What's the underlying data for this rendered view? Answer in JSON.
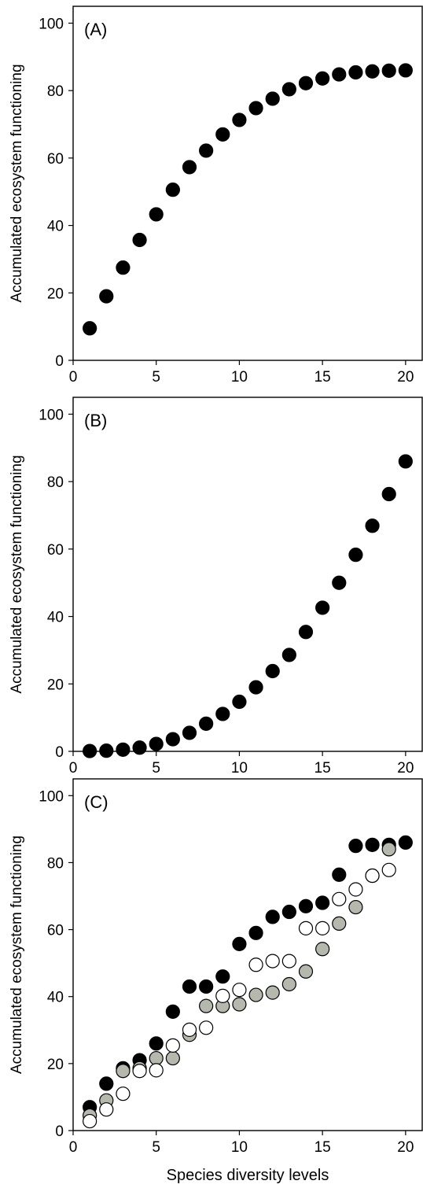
{
  "chart_data": [
    {
      "type": "scatter",
      "panel_label": "(A)",
      "ylabel": "Accumulated ecosystem functioning",
      "xlabel": "",
      "xlim": [
        0,
        21
      ],
      "ylim": [
        0,
        105
      ],
      "xticks": [
        0,
        5,
        10,
        15,
        20
      ],
      "yticks": [
        0,
        20,
        40,
        60,
        80,
        100
      ],
      "series": [
        {
          "color": "#000000",
          "x": [
            1,
            2,
            3,
            4,
            5,
            6,
            7,
            8,
            9,
            10,
            11,
            12,
            13,
            14,
            15,
            16,
            17,
            18,
            19,
            20
          ],
          "y": [
            9.5,
            19,
            27.5,
            35.7,
            43.3,
            50.6,
            57.3,
            62.2,
            67,
            71.3,
            74.8,
            77.6,
            80.4,
            82.2,
            83.6,
            84.8,
            85.4,
            85.7,
            85.9,
            86
          ]
        }
      ]
    },
    {
      "type": "scatter",
      "panel_label": "(B)",
      "ylabel": "Accumulated ecosystem functioning",
      "xlabel": "",
      "xlim": [
        0,
        21
      ],
      "ylim": [
        0,
        105
      ],
      "xticks": [
        0,
        5,
        10,
        15,
        20
      ],
      "yticks": [
        0,
        20,
        40,
        60,
        80,
        100
      ],
      "series": [
        {
          "color": "#000000",
          "x": [
            1,
            2,
            3,
            4,
            5,
            6,
            7,
            8,
            9,
            10,
            11,
            12,
            13,
            14,
            15,
            16,
            17,
            18,
            19,
            20
          ],
          "y": [
            0.1,
            0.2,
            0.5,
            1.1,
            2.2,
            3.6,
            5.5,
            8.2,
            11.1,
            14.7,
            19,
            23.8,
            28.6,
            35.4,
            42.6,
            50,
            58.3,
            66.9,
            76.3,
            86
          ]
        }
      ]
    },
    {
      "type": "scatter",
      "panel_label": "(C)",
      "ylabel": "Accumulated ecosystem functioning",
      "xlabel": "Species diversity levels",
      "xlim": [
        0,
        21
      ],
      "ylim": [
        0,
        105
      ],
      "xticks": [
        0,
        5,
        10,
        15,
        20
      ],
      "yticks": [
        0,
        20,
        40,
        60,
        80,
        100
      ],
      "series": [
        {
          "color": "#000000",
          "x": [
            1,
            2,
            3,
            4,
            5,
            6,
            7,
            8,
            9,
            10,
            11,
            12,
            13,
            14,
            15,
            16,
            17,
            18,
            19,
            20
          ],
          "y": [
            7,
            14,
            18.6,
            21,
            26,
            35.5,
            43,
            43,
            46,
            55.7,
            59,
            63.8,
            65.3,
            67,
            68,
            76.4,
            85,
            85.3,
            85.3,
            86
          ]
        },
        {
          "color": "#b5b8ad",
          "x": [
            1,
            2,
            3,
            4,
            5,
            6,
            7,
            8,
            9,
            10,
            11,
            12,
            13,
            14,
            15,
            16,
            17,
            18,
            19
          ],
          "y": [
            4.5,
            9,
            17.8,
            18.6,
            21.6,
            21.6,
            28.6,
            37.2,
            37.2,
            37.7,
            40.5,
            41.2,
            43.7,
            47.5,
            54.2,
            61.8,
            66.7,
            76.1,
            84
          ]
        },
        {
          "color": "#ffffff",
          "x": [
            1,
            2,
            3,
            4,
            5,
            6,
            7,
            8,
            9,
            10,
            11,
            12,
            13,
            14,
            15,
            16,
            17,
            18,
            19
          ],
          "y": [
            2.8,
            6.3,
            11,
            17.8,
            18,
            25.4,
            30.1,
            30.7,
            40.2,
            42,
            49.5,
            50.6,
            50.6,
            60.4,
            60.4,
            69.1,
            72,
            76.1,
            77.8
          ]
        }
      ]
    }
  ]
}
